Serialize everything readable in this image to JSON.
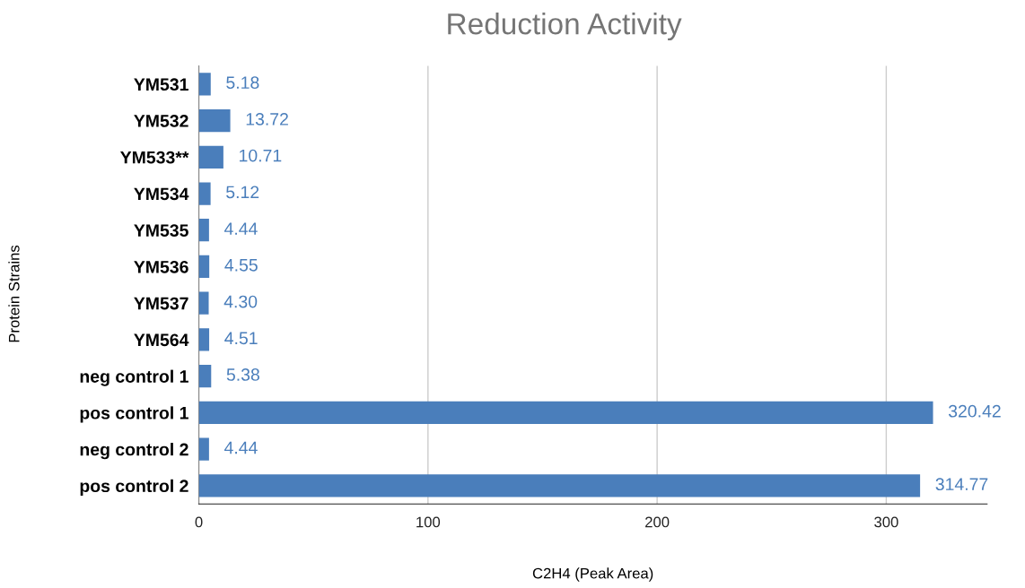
{
  "chart_data": {
    "type": "bar",
    "orientation": "horizontal",
    "title": "Reduction Activity",
    "xlabel": "C2H4 (Peak Area)",
    "ylabel": "Protein Strains",
    "categories": [
      "YM531",
      "YM532",
      "YM533**",
      "YM534",
      "YM535",
      "YM536",
      "YM537",
      "YM564",
      "neg control 1",
      "pos control 1",
      "neg control 2",
      "pos control 2"
    ],
    "values": [
      5.18,
      13.72,
      10.71,
      5.12,
      4.44,
      4.55,
      4.3,
      4.51,
      5.38,
      320.42,
      4.44,
      314.77
    ],
    "value_labels": [
      "5.18",
      "13.72",
      "10.71",
      "5.12",
      "4.44",
      "4.55",
      "4.30",
      "4.51",
      "5.38",
      "320.42",
      "4.44",
      "314.77"
    ],
    "color": "#4a7ebb",
    "xlim": [
      0,
      344
    ],
    "xticks": [
      0,
      100,
      200,
      300
    ],
    "grid": "x",
    "legend": false
  }
}
